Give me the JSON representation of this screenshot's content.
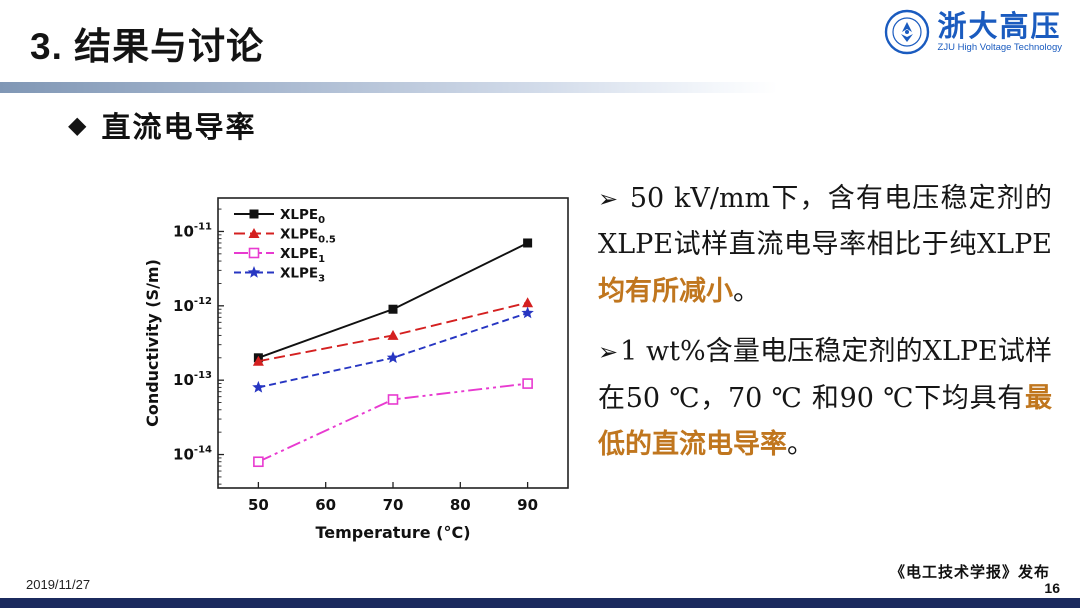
{
  "slide": {
    "title": "3. 结果与讨论",
    "logo": {
      "name_cn": "浙大高压",
      "name_en": "ZJU High Voltage Technology"
    },
    "section_icon": "◆",
    "section_title": "直流电导率",
    "footer": {
      "date": "2019/11/27",
      "source": "《电工技术学报》发布",
      "page": "16"
    }
  },
  "colors": {
    "highlight": "#c0761e",
    "logo_blue": "#1a5bbf",
    "bottom_bar": "#1b2a5e",
    "header_bar": "#8097b5"
  },
  "bullets": [
    {
      "marker": "➢",
      "parts": [
        {
          "text": " 50 kV/mm下，含有电压稳定剂的XLPE试样直流电导率相比于纯XLPE",
          "highlight": false
        },
        {
          "text": "均有所减小",
          "highlight": true
        },
        {
          "text": "。",
          "highlight": false
        }
      ]
    },
    {
      "marker": "➢",
      "parts": [
        {
          "text": "1 wt%含量电压稳定剂的XLPE试样在50 ℃，70 ℃ 和90 ℃下均具有",
          "highlight": false
        },
        {
          "text": "最低的直流电导率",
          "highlight": true
        },
        {
          "text": "。",
          "highlight": false
        }
      ]
    }
  ],
  "chart_data": {
    "type": "line",
    "title": "",
    "xlabel": "Temperature (°C)",
    "ylabel": "Conductivity (S/m)",
    "x": [
      50,
      70,
      90
    ],
    "x_ticks": [
      50,
      60,
      70,
      80,
      90
    ],
    "xlim": [
      44,
      96
    ],
    "y_ticks_exp": [
      -11,
      -12,
      -13,
      -14
    ],
    "ylim_log": [
      -14.45,
      -10.55
    ],
    "y_scale": "log",
    "grid": false,
    "legend_position": "top-left",
    "series": [
      {
        "name": "XLPE",
        "sub": "0",
        "color": "#111111",
        "marker": "square",
        "dash": "",
        "values": [
          2e-13,
          9e-13,
          7e-12
        ]
      },
      {
        "name": "XLPE",
        "sub": "0.5",
        "color": "#d42020",
        "marker": "triangle",
        "dash": "11,5",
        "values": [
          1.8e-13,
          4e-13,
          1.1e-12
        ]
      },
      {
        "name": "XLPE",
        "sub": "1",
        "color": "#e83ad0",
        "marker": "open-square",
        "dash": "14,4,3,4,3,4",
        "values": [
          8e-15,
          5.5e-14,
          9e-14
        ]
      },
      {
        "name": "XLPE",
        "sub": "3",
        "color": "#2736c2",
        "marker": "star",
        "dash": "7,4",
        "values": [
          8e-14,
          2e-13,
          8e-13
        ]
      }
    ]
  }
}
